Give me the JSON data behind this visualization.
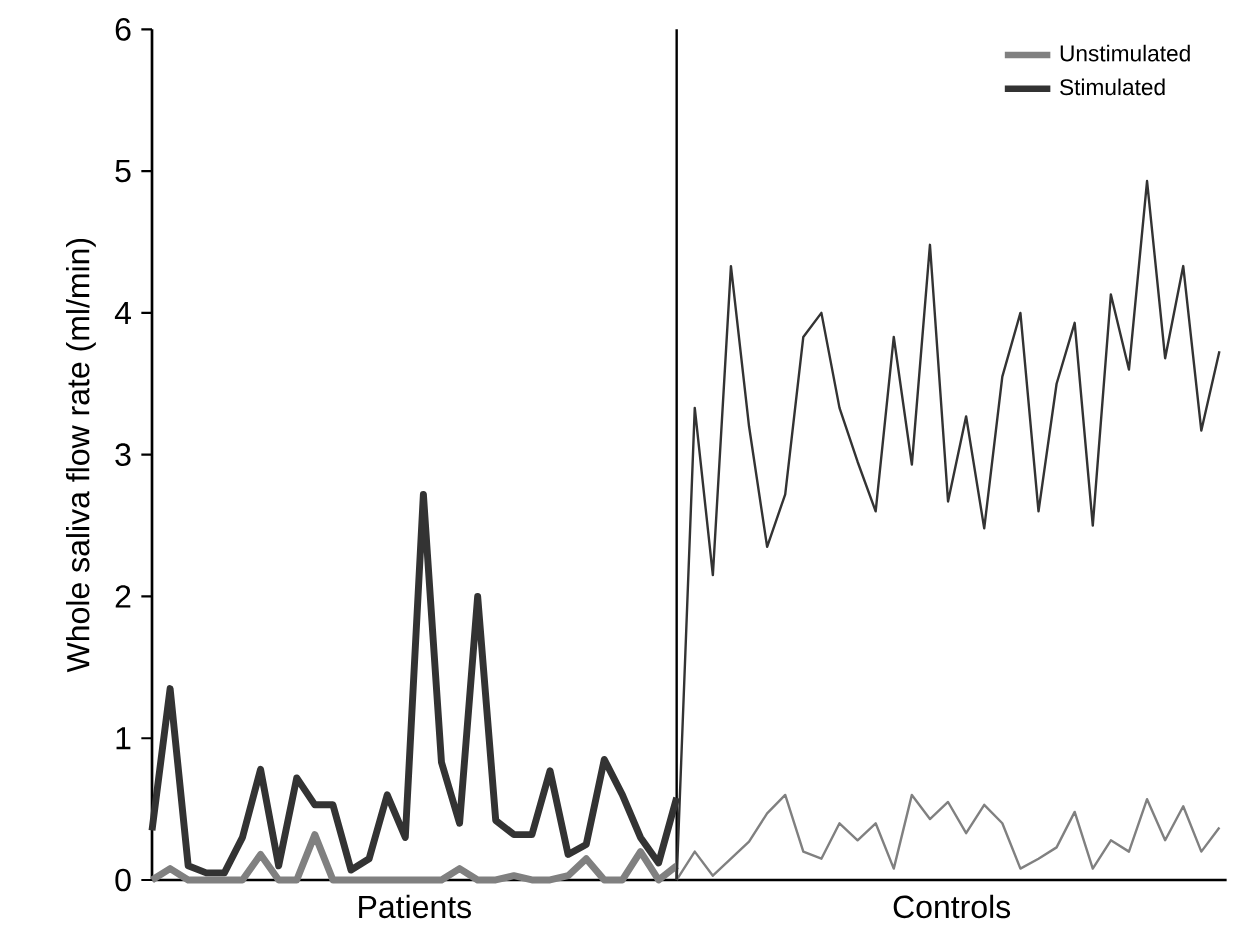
{
  "chart_data": {
    "type": "line",
    "ylabel": "Whole saliva flow rate (ml/min)",
    "categories": [
      null,
      null,
      null,
      null,
      null,
      null,
      null,
      null,
      null,
      null,
      null,
      null,
      null,
      null,
      null,
      null,
      null,
      null,
      null,
      null,
      null,
      null,
      null,
      null,
      null,
      null,
      null,
      null,
      null,
      null,
      null,
      null,
      null,
      null,
      null,
      null,
      null,
      null,
      null,
      null,
      null,
      null,
      null,
      null,
      null,
      null,
      null,
      null,
      null,
      null,
      null,
      null,
      null,
      null,
      null,
      null,
      null,
      null,
      null,
      null
    ],
    "ylim": [
      0,
      6
    ],
    "yticks": [
      0,
      1,
      2,
      3,
      4,
      5,
      6
    ],
    "tick_labels": "y",
    "grid": false,
    "legend": "top right",
    "marker": "none",
    "line_style": "solid",
    "annotations": [
      "Patients",
      "Controls"
    ],
    "series": [
      {
        "name": "Unstimulated",
        "color": "#808080",
        "values": [
          0,
          0.08,
          0,
          0,
          0,
          0,
          0.18,
          0,
          0,
          0.32,
          0,
          0,
          0,
          0,
          0,
          0,
          0,
          0.08,
          0,
          0,
          0.03,
          0,
          0,
          0.03,
          0.15,
          0,
          0,
          0.2,
          0,
          0.1,
          null,
          null,
          null,
          null,
          null,
          null,
          null,
          null,
          null,
          null,
          null,
          null,
          null,
          null,
          null,
          null,
          null,
          null,
          null,
          null,
          null,
          null,
          null,
          null,
          null,
          null,
          null,
          null,
          null,
          null
        ]
      },
      {
        "name": "Stimulated",
        "color": "#333333",
        "values": [
          0.35,
          1.35,
          0.1,
          0.05,
          0.05,
          0.3,
          0.78,
          0.1,
          0.72,
          0.53,
          0.53,
          0.07,
          0.15,
          0.6,
          0.3,
          2.72,
          0.83,
          0.4,
          2.0,
          0.42,
          0.32,
          0.32,
          0.77,
          0.18,
          0.25,
          0.85,
          0.6,
          0.3,
          0.12,
          0.58,
          null,
          null,
          null,
          null,
          null,
          null,
          null,
          null,
          null,
          null,
          null,
          null,
          null,
          null,
          null,
          null,
          null,
          null,
          null,
          null,
          null,
          null,
          null,
          null,
          null,
          null,
          null,
          null,
          null,
          null
        ]
      },
      {
        "color": "#808080",
        "values": [
          null,
          null,
          null,
          null,
          null,
          null,
          null,
          null,
          null,
          null,
          null,
          null,
          null,
          null,
          null,
          null,
          null,
          null,
          null,
          null,
          null,
          null,
          null,
          null,
          null,
          null,
          null,
          null,
          null,
          0,
          0.2,
          0.03,
          0.15,
          0.27,
          0.47,
          0.6,
          0.2,
          0.15,
          0.4,
          0.28,
          0.4,
          0.08,
          0.6,
          0.43,
          0.55,
          0.33,
          0.53,
          0.4,
          0.08,
          0.15,
          0.23,
          0.48,
          0.08,
          0.28,
          0.2,
          0.57,
          0.28,
          0.52,
          0.2,
          0.37
        ]
      },
      {
        "color": "#333333",
        "values": [
          null,
          null,
          null,
          null,
          null,
          null,
          null,
          null,
          null,
          null,
          null,
          null,
          null,
          null,
          null,
          null,
          null,
          null,
          null,
          null,
          null,
          null,
          null,
          null,
          null,
          null,
          null,
          null,
          null,
          0,
          3.33,
          2.15,
          4.33,
          3.2,
          2.35,
          2.72,
          3.83,
          4.0,
          3.33,
          2.95,
          2.6,
          3.83,
          2.93,
          4.48,
          2.67,
          3.27,
          2.48,
          3.55,
          4.0,
          2.6,
          3.5,
          3.93,
          2.5,
          4.13,
          3.6,
          4.93,
          3.68,
          4.33,
          3.17,
          3.73
        ]
      }
    ]
  }
}
